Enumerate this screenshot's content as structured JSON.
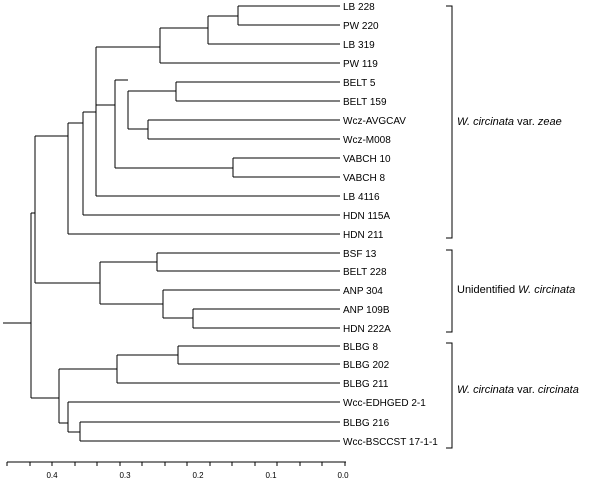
{
  "tree": {
    "leaves": [
      "LB 228",
      "PW 220",
      "LB 319",
      "PW 119",
      "BELT 5",
      "BELT 159",
      "Wcz-AVGCAV",
      "Wcz-M008",
      "VABCH 10",
      "VABCH 8",
      "LB 4116",
      "HDN 115A",
      "HDN 211",
      "BSF 13",
      "BELT 228",
      "ANP 304",
      "ANP 109B",
      "HDN 222A",
      "BLBG 8",
      "BLBG 202",
      "BLBG 211",
      "Wcc-EDHGED 2-1",
      "BLBG 216",
      "Wcc-BSCCST 17-1-1"
    ],
    "groups": [
      {
        "id": "zeae",
        "parts": [
          {
            "text": "W. circinata",
            "italic": true
          },
          {
            "text": " var. ",
            "italic": false
          },
          {
            "text": "zeae",
            "italic": true
          }
        ]
      },
      {
        "id": "unidentified",
        "parts": [
          {
            "text": "Unidentified ",
            "italic": false
          },
          {
            "text": "W. circinata",
            "italic": true
          }
        ]
      },
      {
        "id": "circinata",
        "parts": [
          {
            "text": "W. circinata",
            "italic": true
          },
          {
            "text": " var. ",
            "italic": false
          },
          {
            "text": "circinata",
            "italic": true
          }
        ]
      }
    ],
    "axis": {
      "ticks": [
        "0.4",
        "0.3",
        "0.2",
        "0.1",
        "0.0"
      ]
    }
  }
}
